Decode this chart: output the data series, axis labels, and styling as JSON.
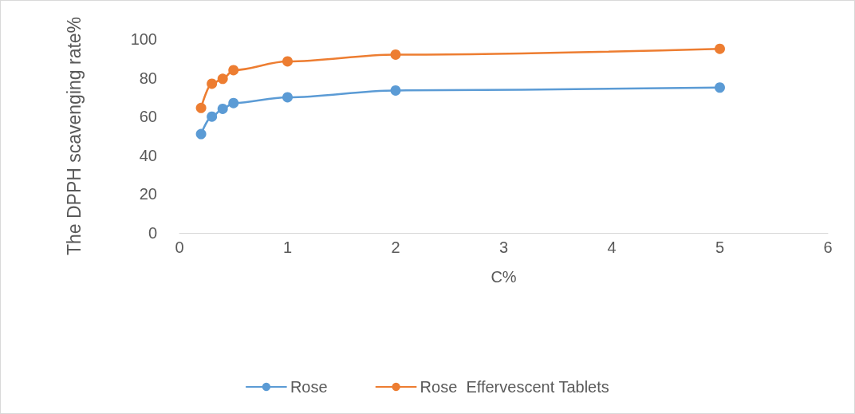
{
  "chart_data": {
    "type": "line",
    "xlabel": "C%",
    "ylabel": "The DPPH scavenging rate%",
    "xlim": [
      0,
      6
    ],
    "xticks": [
      0,
      1,
      2,
      3,
      4,
      5,
      6
    ],
    "ylim": [
      0,
      100
    ],
    "yticks": [
      0,
      20,
      40,
      60,
      80,
      100
    ],
    "grid": false,
    "legend": "bottom",
    "marker": "circle",
    "line_style": "solid",
    "series": [
      {
        "name": "Rose",
        "color": "#5b9bd5",
        "x": [
          0.2,
          0.3,
          0.4,
          0.5,
          1,
          2,
          5
        ],
        "values": [
          51,
          60,
          64,
          67,
          70,
          73.5,
          75
        ]
      },
      {
        "name": "Rose  Effervescent Tablets",
        "color": "#ed7d31",
        "x": [
          0.2,
          0.3,
          0.4,
          0.5,
          1,
          2,
          5
        ],
        "values": [
          64.5,
          77,
          79.5,
          84,
          88.5,
          92,
          95
        ]
      }
    ]
  }
}
